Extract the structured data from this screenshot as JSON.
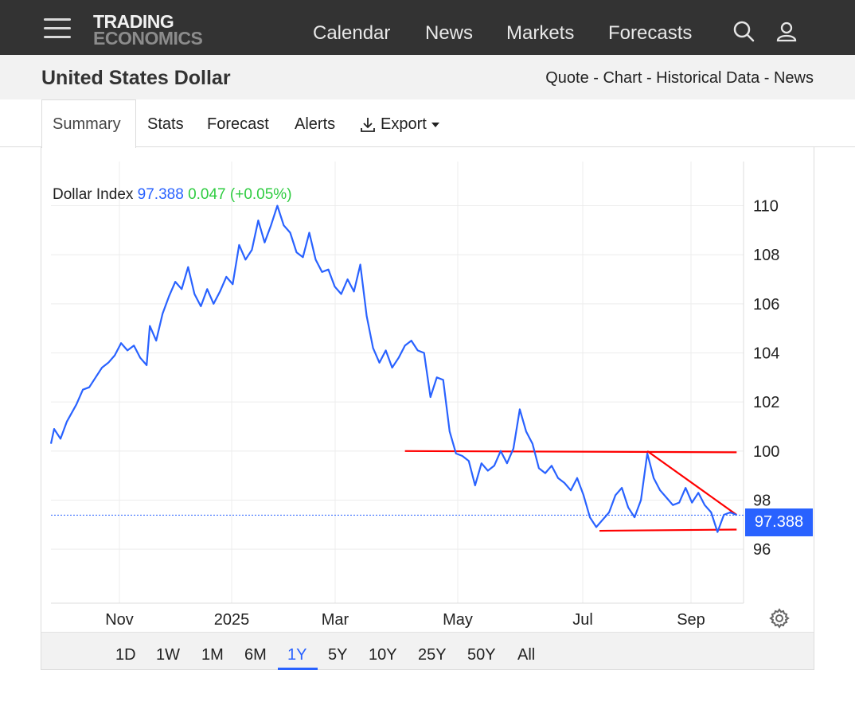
{
  "header": {
    "logo_line1": "TRADING",
    "logo_line2": "ECONOMICS",
    "nav": [
      "Calendar",
      "News",
      "Markets",
      "Forecasts"
    ]
  },
  "page": {
    "title": "United States Dollar",
    "sublinks": "Quote - Chart - Historical Data - News"
  },
  "tabs": {
    "summary": "Summary",
    "stats": "Stats",
    "forecast": "Forecast",
    "alerts": "Alerts",
    "export": "Export"
  },
  "legend": {
    "name": "Dollar Index",
    "value": "97.388",
    "change": "0.047 (+0.05%)"
  },
  "price_tag": "97.388",
  "ranges": [
    "1D",
    "1W",
    "1M",
    "6M",
    "1Y",
    "5Y",
    "10Y",
    "25Y",
    "50Y",
    "All"
  ],
  "active_range": "1Y",
  "colors": {
    "line": "#2962ff",
    "trend": "#ff0000",
    "up": "#2ecc40",
    "header_bg": "#333333"
  },
  "chart_data": {
    "type": "line",
    "series_name": "Dollar Index",
    "x_ticks": [
      "Nov",
      "2025",
      "Mar",
      "May",
      "Jul",
      "Sep"
    ],
    "y_ticks": [
      96,
      98,
      100,
      102,
      104,
      106,
      108,
      110
    ],
    "ylim": [
      93.8,
      111.8
    ],
    "current_value": 97.388,
    "series": [
      {
        "x": 0,
        "y": 100.3
      },
      {
        "x": 1,
        "y": 100.9
      },
      {
        "x": 3,
        "y": 100.5
      },
      {
        "x": 5,
        "y": 101.2
      },
      {
        "x": 8,
        "y": 101.9
      },
      {
        "x": 10,
        "y": 102.5
      },
      {
        "x": 12,
        "y": 102.6
      },
      {
        "x": 14,
        "y": 103.0
      },
      {
        "x": 16,
        "y": 103.4
      },
      {
        "x": 18,
        "y": 103.6
      },
      {
        "x": 20,
        "y": 103.9
      },
      {
        "x": 22,
        "y": 104.4
      },
      {
        "x": 24,
        "y": 104.1
      },
      {
        "x": 26,
        "y": 104.3
      },
      {
        "x": 28,
        "y": 103.8
      },
      {
        "x": 30,
        "y": 103.5
      },
      {
        "x": 31,
        "y": 105.1
      },
      {
        "x": 33,
        "y": 104.5
      },
      {
        "x": 35,
        "y": 105.6
      },
      {
        "x": 37,
        "y": 106.3
      },
      {
        "x": 39,
        "y": 106.9
      },
      {
        "x": 41,
        "y": 106.6
      },
      {
        "x": 43,
        "y": 107.5
      },
      {
        "x": 45,
        "y": 106.4
      },
      {
        "x": 47,
        "y": 105.9
      },
      {
        "x": 49,
        "y": 106.6
      },
      {
        "x": 51,
        "y": 106.0
      },
      {
        "x": 53,
        "y": 106.5
      },
      {
        "x": 55,
        "y": 107.1
      },
      {
        "x": 57,
        "y": 106.8
      },
      {
        "x": 59,
        "y": 108.4
      },
      {
        "x": 61,
        "y": 107.8
      },
      {
        "x": 63,
        "y": 108.2
      },
      {
        "x": 65,
        "y": 109.4
      },
      {
        "x": 67,
        "y": 108.5
      },
      {
        "x": 69,
        "y": 109.2
      },
      {
        "x": 71,
        "y": 110.0
      },
      {
        "x": 73,
        "y": 109.2
      },
      {
        "x": 75,
        "y": 108.9
      },
      {
        "x": 77,
        "y": 108.1
      },
      {
        "x": 79,
        "y": 107.9
      },
      {
        "x": 81,
        "y": 108.9
      },
      {
        "x": 83,
        "y": 107.8
      },
      {
        "x": 85,
        "y": 107.3
      },
      {
        "x": 87,
        "y": 107.4
      },
      {
        "x": 89,
        "y": 106.7
      },
      {
        "x": 91,
        "y": 106.4
      },
      {
        "x": 93,
        "y": 107.0
      },
      {
        "x": 95,
        "y": 106.5
      },
      {
        "x": 97,
        "y": 107.6
      },
      {
        "x": 99,
        "y": 105.5
      },
      {
        "x": 101,
        "y": 104.2
      },
      {
        "x": 103,
        "y": 103.6
      },
      {
        "x": 105,
        "y": 104.1
      },
      {
        "x": 107,
        "y": 103.4
      },
      {
        "x": 109,
        "y": 103.8
      },
      {
        "x": 111,
        "y": 104.3
      },
      {
        "x": 113,
        "y": 104.5
      },
      {
        "x": 115,
        "y": 104.1
      },
      {
        "x": 117,
        "y": 104.0
      },
      {
        "x": 119,
        "y": 102.2
      },
      {
        "x": 121,
        "y": 103.0
      },
      {
        "x": 123,
        "y": 102.9
      },
      {
        "x": 125,
        "y": 100.8
      },
      {
        "x": 127,
        "y": 99.9
      },
      {
        "x": 129,
        "y": 99.8
      },
      {
        "x": 131,
        "y": 99.6
      },
      {
        "x": 133,
        "y": 98.6
      },
      {
        "x": 135,
        "y": 99.5
      },
      {
        "x": 137,
        "y": 99.2
      },
      {
        "x": 139,
        "y": 99.4
      },
      {
        "x": 141,
        "y": 100.0
      },
      {
        "x": 143,
        "y": 99.5
      },
      {
        "x": 145,
        "y": 100.1
      },
      {
        "x": 147,
        "y": 101.7
      },
      {
        "x": 149,
        "y": 100.8
      },
      {
        "x": 151,
        "y": 100.3
      },
      {
        "x": 153,
        "y": 99.3
      },
      {
        "x": 155,
        "y": 99.1
      },
      {
        "x": 157,
        "y": 99.4
      },
      {
        "x": 159,
        "y": 98.9
      },
      {
        "x": 161,
        "y": 98.7
      },
      {
        "x": 163,
        "y": 98.4
      },
      {
        "x": 165,
        "y": 98.9
      },
      {
        "x": 167,
        "y": 98.2
      },
      {
        "x": 169,
        "y": 97.3
      },
      {
        "x": 171,
        "y": 96.9
      },
      {
        "x": 173,
        "y": 97.2
      },
      {
        "x": 175,
        "y": 97.5
      },
      {
        "x": 177,
        "y": 98.2
      },
      {
        "x": 179,
        "y": 98.5
      },
      {
        "x": 181,
        "y": 97.7
      },
      {
        "x": 183,
        "y": 97.3
      },
      {
        "x": 185,
        "y": 98.0
      },
      {
        "x": 187,
        "y": 99.9
      },
      {
        "x": 189,
        "y": 98.9
      },
      {
        "x": 191,
        "y": 98.4
      },
      {
        "x": 193,
        "y": 98.1
      },
      {
        "x": 195,
        "y": 97.8
      },
      {
        "x": 197,
        "y": 97.9
      },
      {
        "x": 199,
        "y": 98.5
      },
      {
        "x": 201,
        "y": 97.9
      },
      {
        "x": 203,
        "y": 98.3
      },
      {
        "x": 205,
        "y": 97.8
      },
      {
        "x": 207,
        "y": 97.5
      },
      {
        "x": 209,
        "y": 96.7
      },
      {
        "x": 211,
        "y": 97.4
      },
      {
        "x": 213,
        "y": 97.5
      },
      {
        "x": 215,
        "y": 97.39
      }
    ],
    "trendlines": [
      {
        "x1": 111,
        "y1": 100.0,
        "x2": 220,
        "y2": 99.95
      },
      {
        "x1": 187,
        "y1": 100.0,
        "x2": 220,
        "y2": 97.4
      },
      {
        "x1": 172,
        "y1": 96.75,
        "x2": 220,
        "y2": 96.8
      }
    ]
  }
}
